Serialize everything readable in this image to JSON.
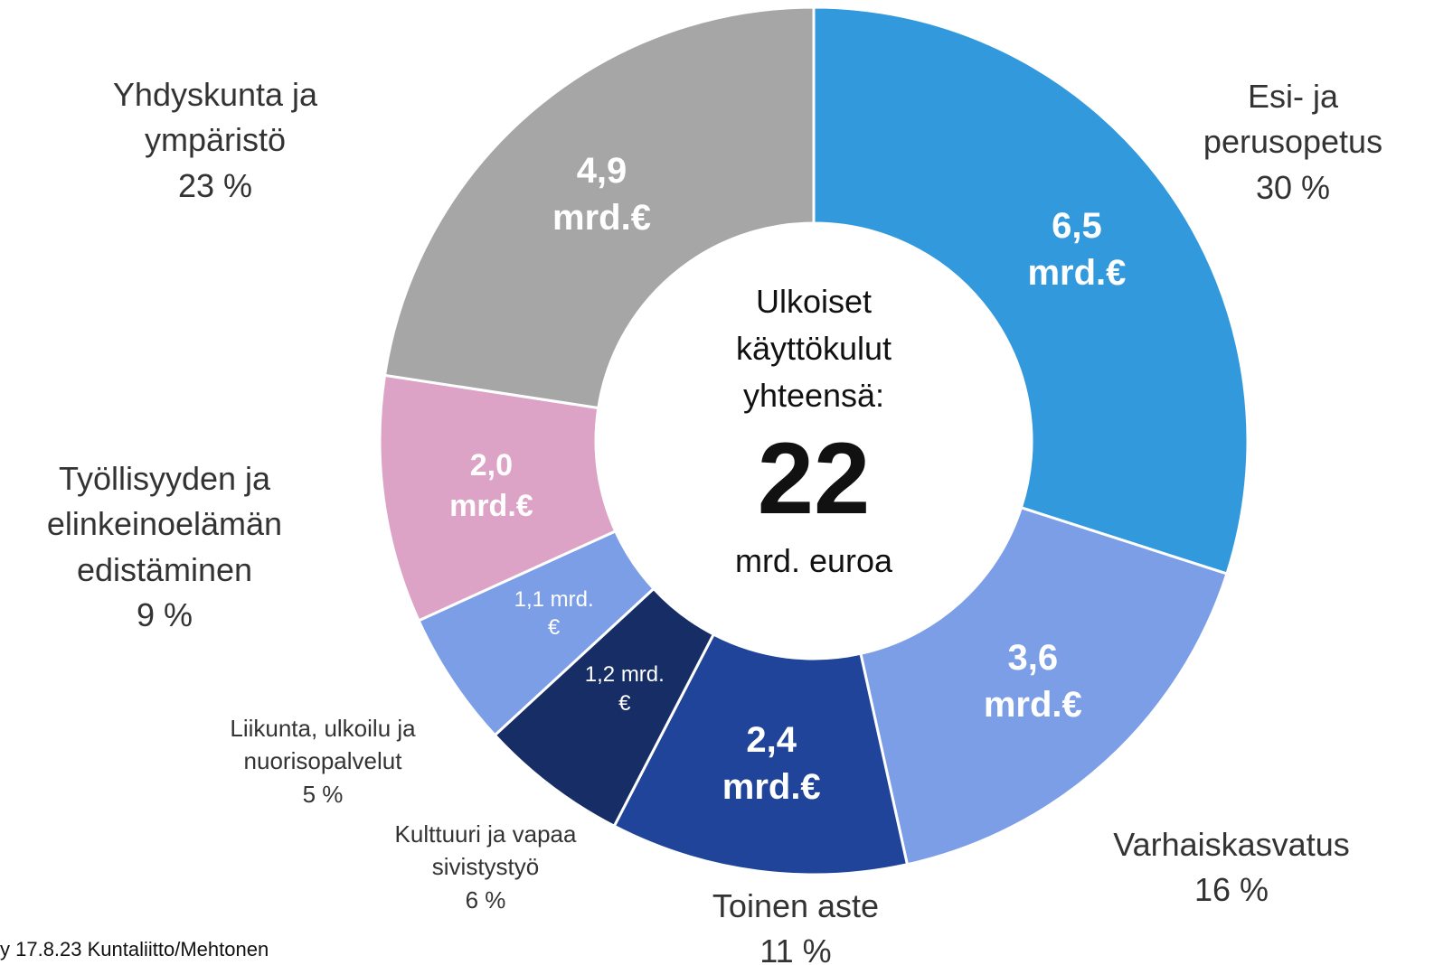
{
  "chart_data": {
    "type": "pie",
    "categories": [
      "Esi- ja perusopetus",
      "Varhaiskasvatus",
      "Toinen aste",
      "Kulttuuri ja vapaa sivistystyö",
      "Liikunta, ulkoilu ja nuorisopalvelut",
      "Työllisyyden ja elinkeinoelämän edistäminen",
      "Yhdyskunta ja ympäristö"
    ],
    "values": [
      6.5,
      3.6,
      2.4,
      1.2,
      1.1,
      2.0,
      4.9
    ],
    "value_labels": [
      "6,5 mrd.€",
      "3,6 mrd.€",
      "2,4 mrd.€",
      "1,2 mrd.€",
      "1,1 mrd.€",
      "2,0 mrd.€",
      "4,9 mrd.€"
    ],
    "percents": [
      30,
      16,
      11,
      6,
      5,
      9,
      23
    ],
    "percent_labels": [
      "30 %",
      "16 %",
      "11 %",
      "6 %",
      "5 %",
      "9 %",
      "23 %"
    ],
    "colors": [
      "#3399dd",
      "#7b9ee6",
      "#1f4499",
      "#172d66",
      "#7b9ee6",
      "#dda3c6",
      "#a6a6a6"
    ],
    "center_title": "Ulkoiset käyttökulut yhteensä:",
    "total": 22,
    "total_unit": "mrd. euroa",
    "source": "y 17.8.23 Kuntaliitto/Mehtonen"
  }
}
